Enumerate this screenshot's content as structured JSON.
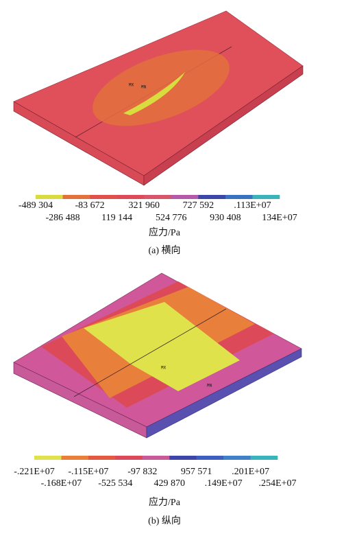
{
  "panels": [
    {
      "markers": [
        "MX",
        "MN"
      ],
      "legend": {
        "colors": [
          "#d9dc3e",
          "#e4703c",
          "#e1504a",
          "#de4a55",
          "#d8566a",
          "#b45aa8",
          "#3a46a8",
          "#3a72c0",
          "#3ab4b8"
        ],
        "labels": [
          "-489 304",
          "-286 488",
          "-83 672",
          "119 144",
          "321 960",
          "524 776",
          "727 592",
          "930 408",
          ".113E+07",
          "134E+07"
        ]
      },
      "unit": "应力/Pa",
      "caption": "(a) 横向"
    },
    {
      "markers": [
        "MX",
        "MN"
      ],
      "legend": {
        "colors": [
          "#dfe24a",
          "#e8803c",
          "#e25840",
          "#dc4a5a",
          "#c95a9a",
          "#3a46a8",
          "#3f5ec0",
          "#4080c8",
          "#3ab4b8"
        ],
        "labels": [
          "-.221E+07",
          "-.168E+07",
          "-.115E+07",
          "-525 534",
          "-97 832",
          "429 870",
          "957 571",
          ".149E+07",
          ".201E+07",
          ".254E+07"
        ]
      },
      "unit": "应力/Pa",
      "caption": "(b) 纵向"
    }
  ]
}
